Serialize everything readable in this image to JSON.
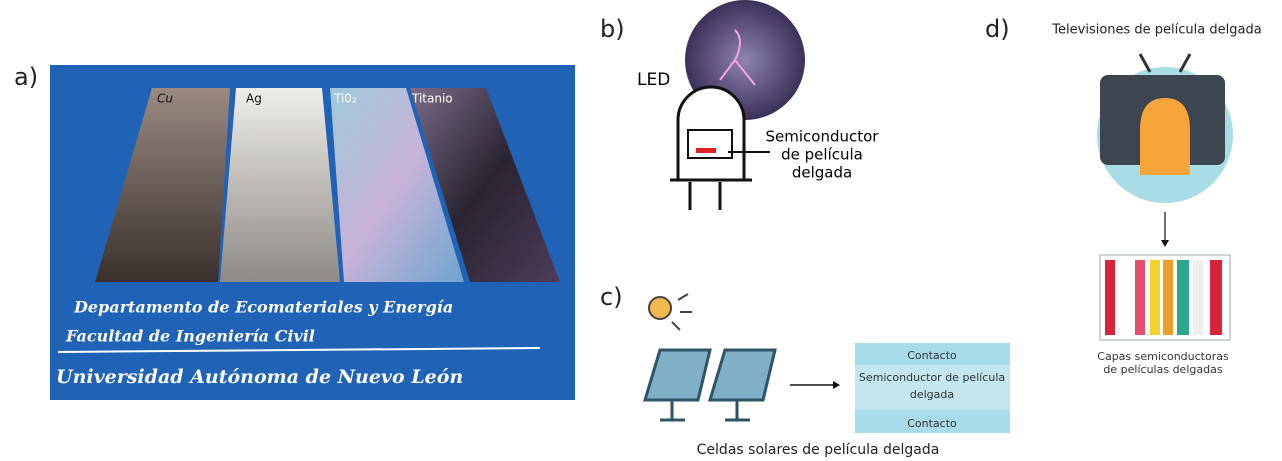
{
  "panels": [
    {
      "label": "a)",
      "samples": [
        "Cu",
        "Ag",
        "Ti0₂",
        "Titanio"
      ],
      "caption_lines": [
        "Departamento de Ecomateriales y Energía",
        "Facultad de Ingeniería Civil",
        "Universidad Autónoma de Nuevo León"
      ]
    },
    {
      "label": "b)",
      "led_label": "LED",
      "semiconductor_lines": [
        "Semiconductor",
        "de película",
        "delgada"
      ]
    },
    {
      "label": "c)",
      "layers": [
        "Contacto",
        "Semiconductor de película",
        "delgada",
        "Contacto"
      ],
      "caption": "Celdas solares de película delgada"
    },
    {
      "label": "d)",
      "title": "Televisiones de película delgada",
      "caption_lines": [
        "Capas semiconductoras",
        "de películas delgadas"
      ]
    }
  ]
}
